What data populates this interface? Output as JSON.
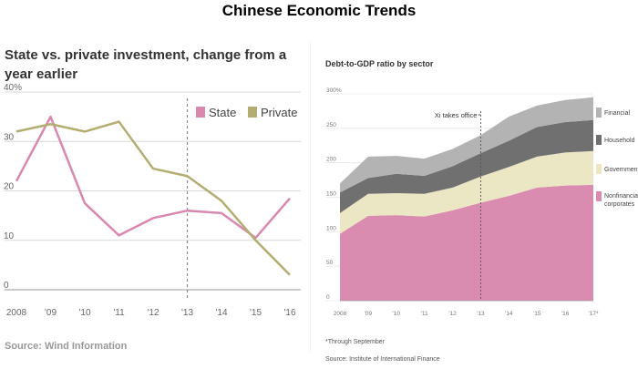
{
  "page_title": "Chinese Economic Trends",
  "colors": {
    "state": "#d988b0",
    "private": "#b4ad72",
    "nonfinancial_corporates": "#d98cb0",
    "government": "#ebe6c3",
    "household": "#707070",
    "financial": "#b3b3b3",
    "grid": "#d9d9d9",
    "annotation": "#888888"
  },
  "left_chart": {
    "title": "State vs. private investment, change from a year earlier",
    "source": "Source: Wind Information"
  },
  "right_chart": {
    "title": "Debt-to-GDP ratio by sector",
    "footnote": "*Through September",
    "source": "Source: Institute of International Finance"
  },
  "chart_data": [
    {
      "type": "line",
      "title": "State vs. private investment, change from a year earlier",
      "x": [
        2008,
        2009,
        2010,
        2011,
        2012,
        2013,
        2014,
        2015,
        2016
      ],
      "x_tick_labels": [
        "2008",
        "'09",
        "'10",
        "'11",
        "'12",
        "'13",
        "'14",
        "'15",
        "'16"
      ],
      "y_tick_labels": [
        "40%",
        "30",
        "20",
        "10",
        "0"
      ],
      "ylim": [
        0,
        40
      ],
      "series": [
        {
          "name": "State",
          "x": [
            2008,
            2009,
            2010,
            2011,
            2012,
            2013,
            2014,
            2015,
            2016
          ],
          "values": [
            22,
            35,
            17.5,
            11,
            14.5,
            16,
            15.5,
            10.5,
            18.5
          ]
        },
        {
          "name": "Private",
          "x": [
            2008,
            2009,
            2010,
            2011,
            2012,
            2013,
            2014,
            2015,
            2016
          ],
          "values": [
            32,
            33.5,
            32,
            34,
            24.5,
            23,
            18,
            10,
            3
          ]
        }
      ],
      "annotation": {
        "x": 2013,
        "style": "dashed vertical line"
      },
      "legend": "top-right",
      "grid": "horizontal"
    },
    {
      "type": "area",
      "title": "Debt-to-GDP ratio by sector",
      "x": [
        2008,
        2009,
        2010,
        2011,
        2012,
        2013,
        2014,
        2015,
        2016,
        2017
      ],
      "x_tick_labels": [
        "2008",
        "'09",
        "'10",
        "'11",
        "'12",
        "'13",
        "'14",
        "'15",
        "'16",
        "'17*"
      ],
      "y_tick_labels": [
        "300%",
        "250",
        "200",
        "150",
        "100",
        "50",
        "0"
      ],
      "ylim": [
        0,
        300
      ],
      "stacked": true,
      "series": [
        {
          "name": "Nonfinancial corporates",
          "values": [
            97,
            123,
            124,
            122,
            131,
            142,
            152,
            164,
            167,
            168
          ]
        },
        {
          "name": "Government",
          "values": [
            30,
            32,
            32,
            33,
            33,
            38,
            42,
            45,
            48,
            49
          ]
        },
        {
          "name": "Household",
          "values": [
            30,
            23,
            28,
            26,
            31,
            34,
            38,
            43,
            44,
            45
          ]
        },
        {
          "name": "Financial",
          "values": [
            13,
            31,
            26,
            25,
            25,
            26,
            35,
            31,
            32,
            33
          ]
        }
      ],
      "annotation": {
        "x": 2013,
        "label": "Xi takes office"
      },
      "legend": "right"
    }
  ]
}
